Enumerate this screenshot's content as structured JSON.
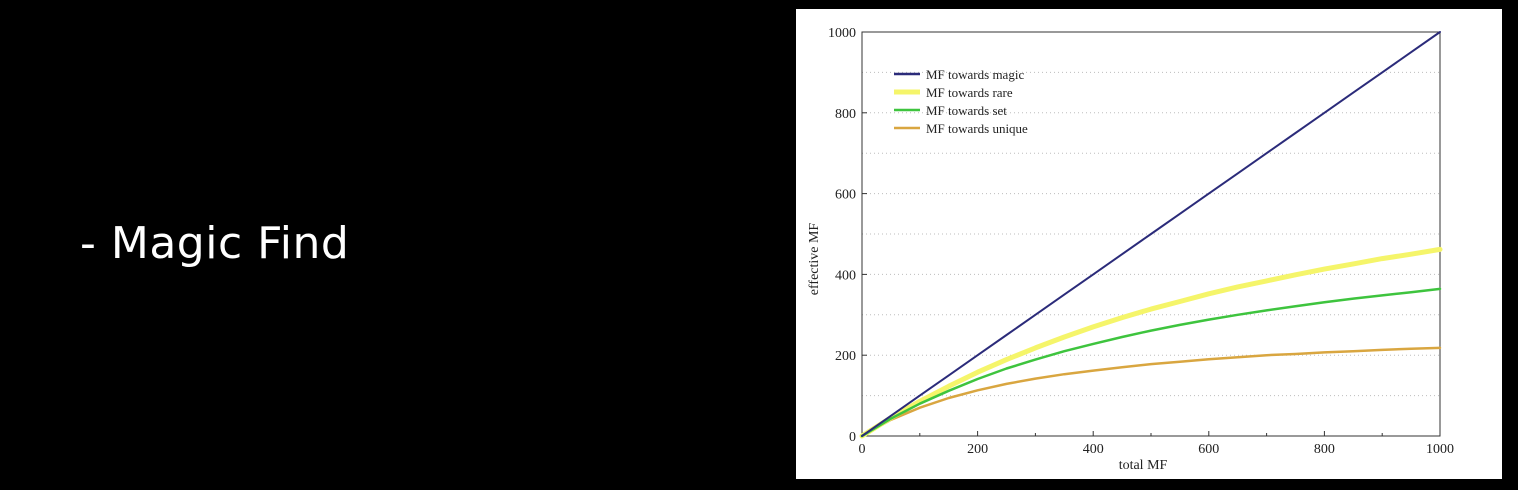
{
  "slide": {
    "bullet_text": "- Magic Find"
  },
  "chart_data": {
    "type": "line",
    "title": "",
    "xlabel": "total MF",
    "ylabel": "effective MF",
    "xlim": [
      0,
      1000
    ],
    "ylim": [
      0,
      1000
    ],
    "x_ticks": [
      0,
      200,
      400,
      600,
      800,
      1000
    ],
    "y_ticks": [
      0,
      200,
      400,
      600,
      800,
      1000
    ],
    "grid": "horizontal dotted",
    "legend_position": "top-left",
    "x": [
      0,
      50,
      100,
      150,
      200,
      250,
      300,
      350,
      400,
      450,
      500,
      550,
      600,
      650,
      700,
      750,
      800,
      850,
      900,
      950,
      1000
    ],
    "series": [
      {
        "name": "MF towards magic",
        "color": "#2b2b7a",
        "values": [
          0,
          50,
          100,
          150,
          200,
          250,
          300,
          350,
          400,
          450,
          500,
          550,
          600,
          650,
          700,
          750,
          800,
          850,
          900,
          950,
          1000
        ]
      },
      {
        "name": "MF towards rare",
        "color": "#f5f56a",
        "values": [
          0,
          45,
          86,
          123,
          158,
          189,
          218,
          245,
          270,
          293,
          314,
          333,
          352,
          369,
          384,
          399,
          413,
          426,
          439,
          450,
          462
        ]
      },
      {
        "name": "MF towards set",
        "color": "#3ec43e",
        "values": [
          0,
          43,
          80,
          112,
          141,
          167,
          189,
          210,
          228,
          245,
          261,
          275,
          288,
          300,
          311,
          321,
          331,
          340,
          348,
          356,
          364
        ]
      },
      {
        "name": "MF towards unique",
        "color": "#d9a640",
        "values": [
          0,
          40,
          70,
          94,
          113,
          129,
          142,
          153,
          162,
          170,
          178,
          184,
          190,
          195,
          200,
          203,
          207,
          210,
          213,
          216,
          218
        ]
      }
    ]
  }
}
